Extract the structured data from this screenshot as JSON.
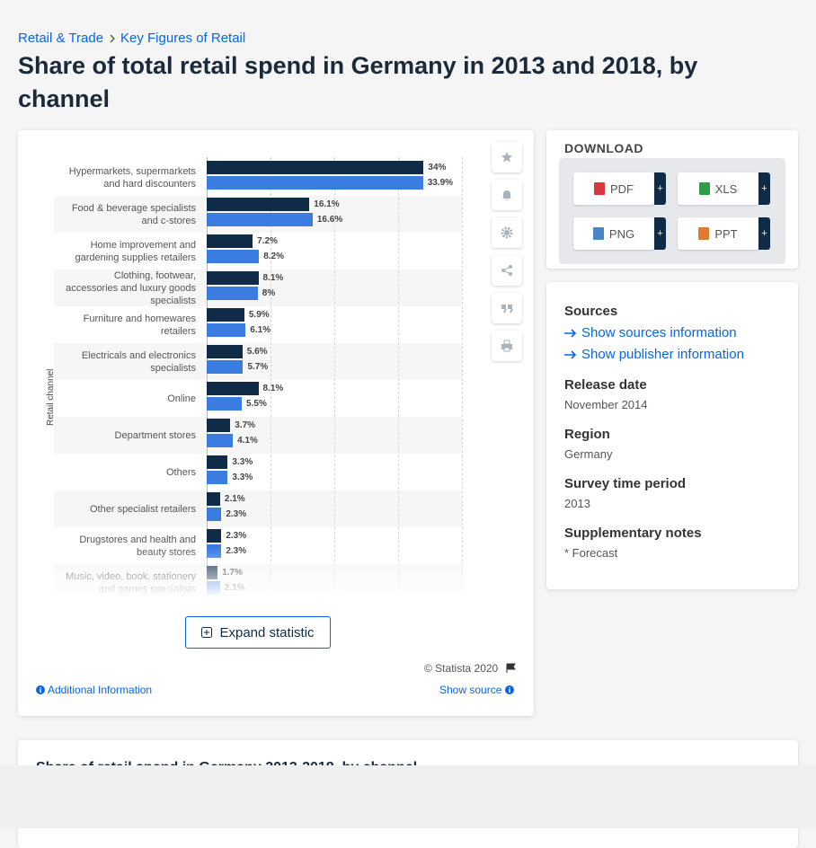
{
  "breadcrumb": [
    "Retail & Trade",
    "Key Figures of Retail"
  ],
  "title": "Share of total retail spend in Germany in 2013 and 2018, by channel",
  "chart_data": {
    "type": "bar",
    "orientation": "horizontal",
    "y_label": "Retail channel",
    "categories": [
      "Hypermarkets, supermarkets and hard discounters",
      "Food & beverage specialists and c-stores",
      "Home improvement and gardening supplies retailers",
      "Clothing, footwear, accessories and luxury goods specialists",
      "Furniture and homewares retailers",
      "Electricals and electronics specialists",
      "Online",
      "Department stores",
      "Others",
      "Other specialist retailers",
      "Drugstores and health and beauty stores",
      "Music, video, book, stationery and games specialists"
    ],
    "series": [
      {
        "color": "#0f2b46",
        "values": [
          34,
          16.1,
          7.2,
          8.1,
          5.9,
          5.6,
          8.1,
          3.7,
          3.3,
          2.1,
          2.3,
          1.7
        ],
        "value_labels": [
          "34%",
          "16.1%",
          "7.2%",
          "8.1%",
          "5.9%",
          "5.6%",
          "8.1%",
          "3.7%",
          "3.3%",
          "2.1%",
          "2.3%",
          "1.7%"
        ]
      },
      {
        "color": "#3b7ce0",
        "values": [
          33.9,
          16.6,
          8.2,
          8,
          6.1,
          5.7,
          5.5,
          4.1,
          3.3,
          2.3,
          2.3,
          2.1
        ],
        "value_labels": [
          "33.9%",
          "16.6%",
          "8.2%",
          "8%",
          "6.1%",
          "5.7%",
          "5.5%",
          "4.1%",
          "3.3%",
          "2.3%",
          "2.3%",
          "2.1%"
        ]
      }
    ],
    "xlim": [
      0,
      40
    ],
    "xticks": [
      0,
      10,
      20,
      30,
      40
    ],
    "grid": true
  },
  "chart_card": {
    "expand_button": "Expand statistic",
    "copyright": "© Statista 2020",
    "additional_info": "Additional Information",
    "show_source": "Show source"
  },
  "download": {
    "title": "DOWNLOAD",
    "formats": [
      "PDF",
      "XLS",
      "PNG",
      "PPT"
    ],
    "plus": "+"
  },
  "sources": {
    "title": "Sources",
    "links": [
      "Show sources information",
      "Show publisher information"
    ]
  },
  "details": [
    {
      "label": "Release date",
      "value": "November 2014"
    },
    {
      "label": "Region",
      "value": "Germany"
    },
    {
      "label": "Survey time period",
      "value": "2013"
    },
    {
      "label": "Supplementary notes",
      "value": "* Forecast"
    }
  ],
  "next_card_title": "Share of retail spend in Germany 2013-2018, by channel"
}
